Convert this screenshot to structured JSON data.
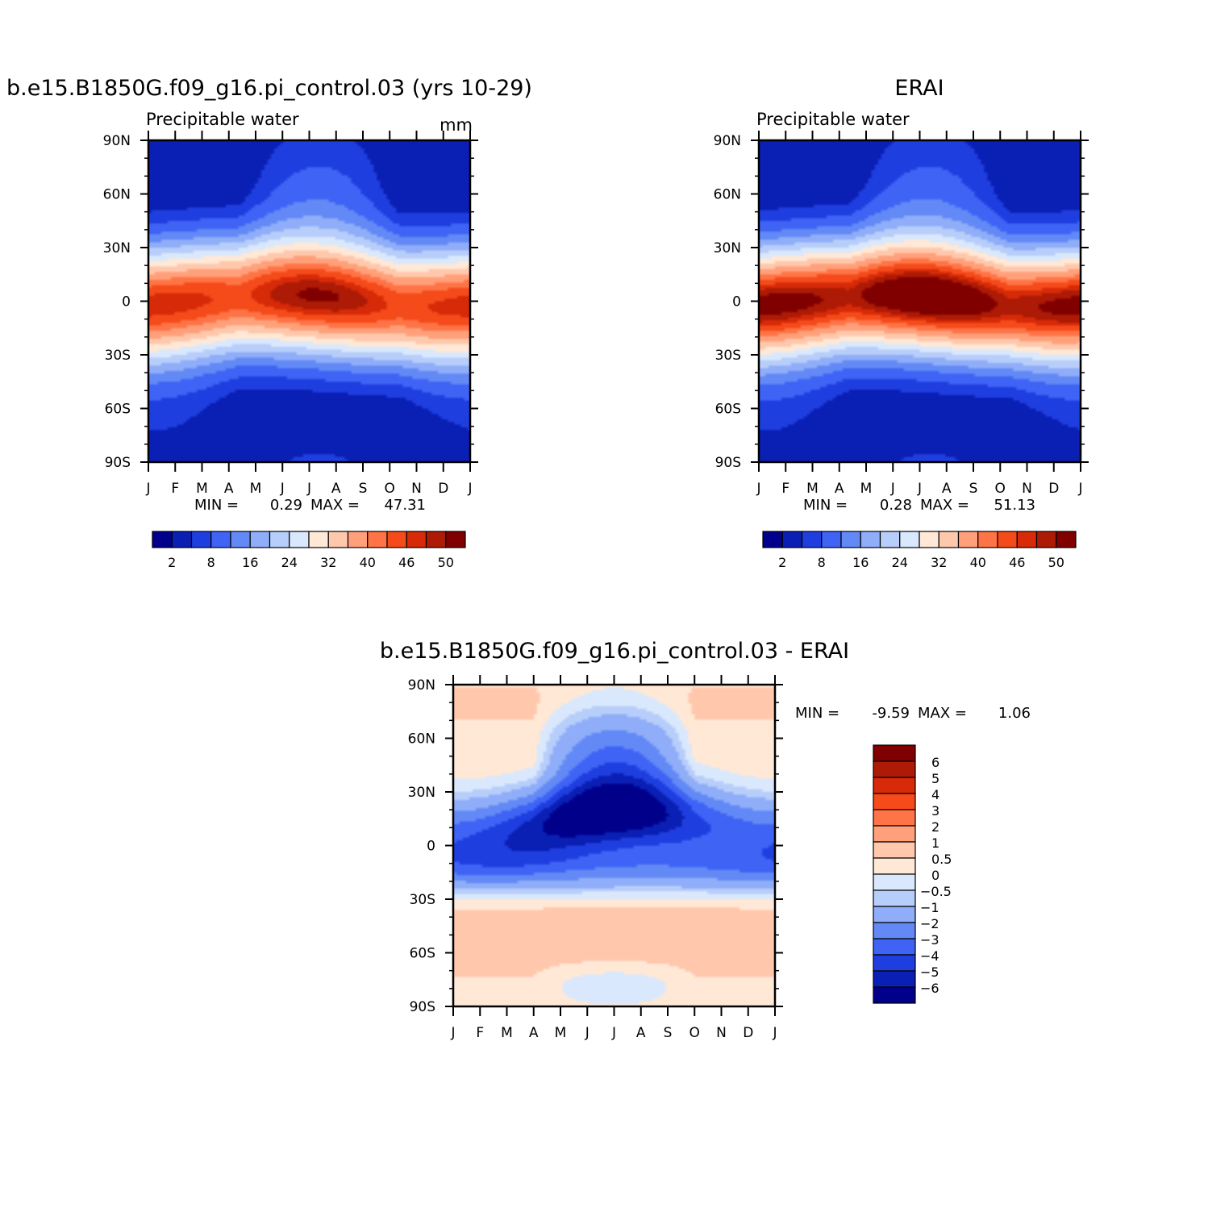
{
  "chart_data": [
    {
      "type": "heatmap",
      "title": "b.e15.B1850G.f09_g16.pi_control.03 (yrs 10-29)",
      "subtitle": "Precipitable water",
      "units": "mm",
      "xlabel": "",
      "ylabel": "",
      "x_ticks": [
        "J",
        "F",
        "M",
        "A",
        "M",
        "J",
        "J",
        "A",
        "S",
        "O",
        "N",
        "D",
        "J"
      ],
      "y_ticks": [
        "90N",
        "60N",
        "30N",
        "0",
        "30S",
        "60S",
        "90S"
      ],
      "ylim": [
        -90,
        90
      ],
      "min_label": "MIN =",
      "min_value": "0.29",
      "max_label": "MAX =",
      "max_value": "47.31",
      "colorbar_levels": [
        "2",
        "8",
        "16",
        "24",
        "32",
        "40",
        "46",
        "50"
      ],
      "colors": [
        "#00008b",
        "#0a1fb3",
        "#1f3ee0",
        "#3f63f5",
        "#6289f5",
        "#8fadf8",
        "#b7cdfa",
        "#d9e8fd",
        "#ffe8d6",
        "#ffc8ad",
        "#ffa07a",
        "#ff7446",
        "#f54a1a",
        "#d62a08",
        "#ad1a05",
        "#800000"
      ]
    },
    {
      "type": "heatmap",
      "title": "ERAI",
      "subtitle": "Precipitable water",
      "xlabel": "",
      "ylabel": "",
      "x_ticks": [
        "J",
        "F",
        "M",
        "A",
        "M",
        "J",
        "J",
        "A",
        "S",
        "O",
        "N",
        "D",
        "J"
      ],
      "y_ticks": [
        "90N",
        "60N",
        "30N",
        "0",
        "30S",
        "60S",
        "90S"
      ],
      "ylim": [
        -90,
        90
      ],
      "min_label": "MIN =",
      "min_value": "0.28",
      "max_label": "MAX =",
      "max_value": "51.13",
      "colorbar_levels": [
        "2",
        "8",
        "16",
        "24",
        "32",
        "40",
        "46",
        "50"
      ]
    },
    {
      "type": "heatmap",
      "title": "b.e15.B1850G.f09_g16.pi_control.03 - ERAI",
      "xlabel": "",
      "ylabel": "",
      "x_ticks": [
        "J",
        "F",
        "M",
        "A",
        "M",
        "J",
        "J",
        "A",
        "S",
        "O",
        "N",
        "D",
        "J"
      ],
      "y_ticks": [
        "90N",
        "60N",
        "30N",
        "0",
        "30S",
        "60S",
        "90S"
      ],
      "ylim": [
        -90,
        90
      ],
      "min_label": "MIN =",
      "min_value": "-9.59",
      "max_label": "MAX =",
      "max_value": "1.06",
      "colorbar_levels": [
        "6",
        "5",
        "4",
        "3",
        "2",
        "1",
        "0.5",
        "0",
        "-0.5",
        "-1",
        "-2",
        "-3",
        "-4",
        "-5",
        "-6"
      ],
      "colors": [
        "#800000",
        "#ad1a05",
        "#d62a08",
        "#f54a1a",
        "#ff7446",
        "#ffa07a",
        "#ffc8ad",
        "#ffe8d6",
        "#d9e8fd",
        "#b7cdfa",
        "#8fadf8",
        "#6289f5",
        "#3f63f5",
        "#1f3ee0",
        "#0a1fb3",
        "#00008b"
      ]
    }
  ]
}
